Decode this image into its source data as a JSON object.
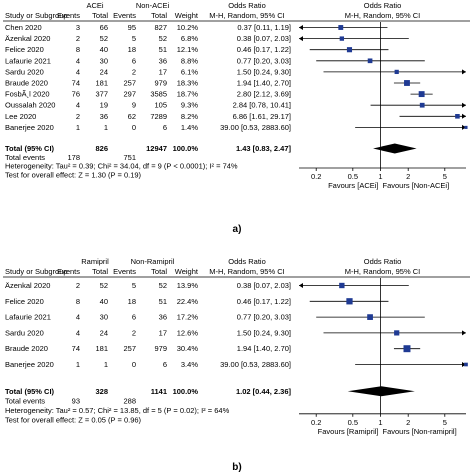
{
  "chart_data": [
    {
      "type": "table",
      "panel_label": "a)",
      "header": {
        "col_study": "Study or Subgroup",
        "group1": "ACEi",
        "group2": "Non-ACEi",
        "events": "Events",
        "total": "Total",
        "weight": "Weight",
        "or_title": "Odds Ratio",
        "or_sub": "M-H, Random, 95% CI"
      },
      "rows": [
        {
          "study": "Chen 2020",
          "e1": "3",
          "t1": "66",
          "e2": "95",
          "t2": "827",
          "weight": "10.2%",
          "ci_text": "0.37 [0.11, 1.19]",
          "or": 0.37,
          "lo": 0.11,
          "hi": 1.19
        },
        {
          "study": "Äzenkal 2020",
          "e1": "2",
          "t1": "52",
          "e2": "5",
          "t2": "52",
          "weight": "6.8%",
          "ci_text": "0.38 [0.07, 2.03]",
          "or": 0.38,
          "lo": 0.07,
          "hi": 2.03
        },
        {
          "study": "Felice 2020",
          "e1": "8",
          "t1": "40",
          "e2": "18",
          "t2": "51",
          "weight": "12.1%",
          "ci_text": "0.46 [0.17, 1.22]",
          "or": 0.46,
          "lo": 0.17,
          "hi": 1.22
        },
        {
          "study": "Lafaurie 2021",
          "e1": "4",
          "t1": "30",
          "e2": "6",
          "t2": "36",
          "weight": "8.8%",
          "ci_text": "0.77 [0.20, 3.03]",
          "or": 0.77,
          "lo": 0.2,
          "hi": 3.03
        },
        {
          "study": "Sardu 2020",
          "e1": "4",
          "t1": "24",
          "e2": "2",
          "t2": "17",
          "weight": "6.1%",
          "ci_text": "1.50 [0.24, 9.30]",
          "or": 1.5,
          "lo": 0.24,
          "hi": 9.3
        },
        {
          "study": "Braude 2020",
          "e1": "74",
          "t1": "181",
          "e2": "257",
          "t2": "979",
          "weight": "18.3%",
          "ci_text": "1.94 [1.40, 2.70]",
          "or": 1.94,
          "lo": 1.4,
          "hi": 2.7
        },
        {
          "study": "FosbÃ¸l 2020",
          "e1": "76",
          "t1": "377",
          "e2": "297",
          "t2": "3585",
          "weight": "18.7%",
          "ci_text": "2.80 [2.12, 3.69]",
          "or": 2.8,
          "lo": 2.12,
          "hi": 3.69
        },
        {
          "study": "Oussalah 2020",
          "e1": "4",
          "t1": "19",
          "e2": "9",
          "t2": "105",
          "weight": "9.3%",
          "ci_text": "2.84 [0.78, 10.41]",
          "or": 2.84,
          "lo": 0.78,
          "hi": 10.41
        },
        {
          "study": "Lee 2020",
          "e1": "2",
          "t1": "36",
          "e2": "62",
          "t2": "7289",
          "weight": "8.2%",
          "ci_text": "6.86 [1.61, 29.17]",
          "or": 6.86,
          "lo": 1.61,
          "hi": 29.17
        },
        {
          "study": "Banerjee 2020",
          "e1": "1",
          "t1": "1",
          "e2": "0",
          "t2": "6",
          "weight": "1.4%",
          "ci_text": "39.00 [0.53, 2883.60]",
          "or": 39.0,
          "lo": 0.53,
          "hi": 2883.6
        }
      ],
      "total": {
        "label": "Total (95% CI)",
        "t1": "826",
        "t2": "12947",
        "weight": "100.0%",
        "ci_text": "1.43 [0.83, 2.47]",
        "or": 1.43,
        "lo": 0.83,
        "hi": 2.47
      },
      "total_events": {
        "label": "Total events",
        "e1": "178",
        "e2": "751"
      },
      "heterogeneity": "Heterogeneity: Tau² = 0.39; Chi² = 34.04, df = 9 (P < 0.0001); I² = 74%",
      "overall_effect": "Test for overall effect: Z = 1.30 (P = 0.19)",
      "axis": {
        "scale": "log",
        "ticks": [
          0.2,
          0.5,
          1,
          2,
          5
        ],
        "tick_labels": [
          "0.2",
          "0.5",
          "1",
          "2",
          "5"
        ],
        "range": [
          0.13,
          8.5
        ]
      },
      "favours_left": "Favours [ACEi]",
      "favours_right": "Favours [Non-ACEi]"
    },
    {
      "type": "table",
      "panel_label": "b)",
      "header": {
        "col_study": "Study or Subgroup",
        "group1": "Ramipril",
        "group2": "Non-Ramipril",
        "events": "Events",
        "total": "Total",
        "weight": "Weight",
        "or_title": "Odds Ratio",
        "or_sub": "M-H, Random, 95% CI"
      },
      "rows": [
        {
          "study": "Äzenkal 2020",
          "e1": "2",
          "t1": "52",
          "e2": "5",
          "t2": "52",
          "weight": "13.9%",
          "ci_text": "0.38 [0.07, 2.03]",
          "or": 0.38,
          "lo": 0.07,
          "hi": 2.03
        },
        {
          "study": "Felice 2020",
          "e1": "8",
          "t1": "40",
          "e2": "18",
          "t2": "51",
          "weight": "22.4%",
          "ci_text": "0.46 [0.17, 1.22]",
          "or": 0.46,
          "lo": 0.17,
          "hi": 1.22
        },
        {
          "study": "Lafaurie 2021",
          "e1": "4",
          "t1": "30",
          "e2": "6",
          "t2": "36",
          "weight": "17.2%",
          "ci_text": "0.77 [0.20, 3.03]",
          "or": 0.77,
          "lo": 0.2,
          "hi": 3.03
        },
        {
          "study": "Sardu 2020",
          "e1": "4",
          "t1": "24",
          "e2": "2",
          "t2": "17",
          "weight": "12.6%",
          "ci_text": "1.50 [0.24, 9.30]",
          "or": 1.5,
          "lo": 0.24,
          "hi": 9.3
        },
        {
          "study": "Braude 2020",
          "e1": "74",
          "t1": "181",
          "e2": "257",
          "t2": "979",
          "weight": "30.4%",
          "ci_text": "1.94 [1.40, 2.70]",
          "or": 1.94,
          "lo": 1.4,
          "hi": 2.7
        },
        {
          "study": "Banerjee 2020",
          "e1": "1",
          "t1": "1",
          "e2": "0",
          "t2": "6",
          "weight": "3.4%",
          "ci_text": "39.00 [0.53, 2883.60]",
          "or": 39.0,
          "lo": 0.53,
          "hi": 2883.6
        }
      ],
      "total": {
        "label": "Total (95% CI)",
        "t1": "328",
        "t2": "1141",
        "weight": "100.0%",
        "ci_text": "1.02 [0.44, 2.36]",
        "or": 1.02,
        "lo": 0.44,
        "hi": 2.36
      },
      "total_events": {
        "label": "Total events",
        "e1": "93",
        "e2": "288"
      },
      "heterogeneity": "Heterogeneity: Tau² = 0.57; Chi² = 13.85, df = 5 (P = 0.02); I² = 64%",
      "overall_effect": "Test for overall effect: Z = 0.05 (P = 0.96)",
      "axis": {
        "scale": "log",
        "ticks": [
          0.2,
          0.5,
          1,
          2,
          5
        ],
        "tick_labels": [
          "0.2",
          "0.5",
          "1",
          "2",
          "5"
        ],
        "range": [
          0.13,
          8.5
        ]
      },
      "favours_left": "Favours [Ramipril]",
      "favours_right": "Favours [Non-ramipril]"
    }
  ],
  "colors": {
    "marker": "#1f3a93",
    "diamond": "#000000",
    "line": "#000000"
  }
}
